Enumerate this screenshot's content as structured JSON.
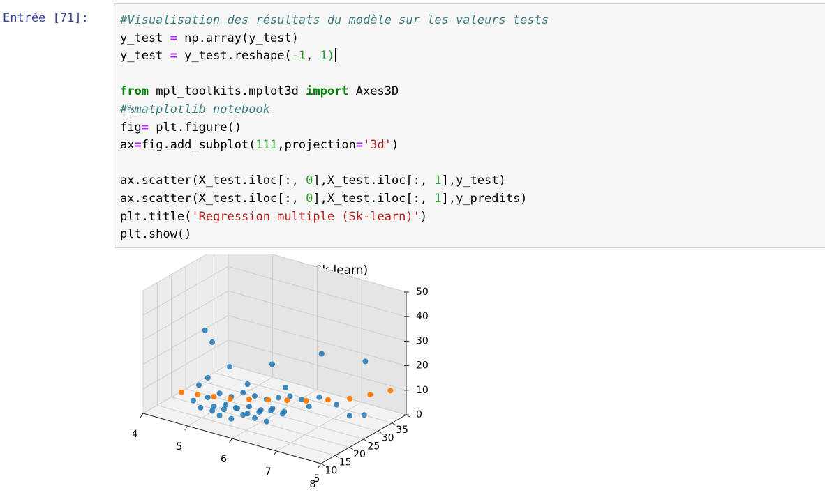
{
  "prompt": {
    "label": "Entrée [71]:"
  },
  "code": {
    "line1": "#Visualisation des résultats du modèle sur les valeurs tests",
    "line2": {
      "a": "y_test ",
      "op": "=",
      "b": " np.array(y_test)"
    },
    "line3": {
      "a": "y_test ",
      "op": "=",
      "b": " y_test.reshape(",
      "n1": "-1",
      "c": ", ",
      "n2": "1",
      "d": ")"
    },
    "line5": {
      "kw1": "from",
      "a": " mpl_toolkits.mplot3d ",
      "kw2": "import",
      "b": " Axes3D"
    },
    "line6": "#%matplotlib notebook",
    "line7": {
      "a": "fig",
      "op": "=",
      "b": " plt.figure()"
    },
    "line8": {
      "a": "ax",
      "op": "=",
      "b": "fig.add_subplot(",
      "n": "111",
      "c": ",projection",
      "op2": "=",
      "s": "'3d'",
      "d": ")"
    },
    "line10": {
      "a": "ax.scatter(X_test.iloc[:, ",
      "n1": "0",
      "b": "],X_test.iloc[:, ",
      "n2": "1",
      "c": "],y_test)"
    },
    "line11": {
      "a": "ax.scatter(X_test.iloc[:, ",
      "n1": "0",
      "b": "],X_test.iloc[:, ",
      "n2": "1",
      "c": "],y_predits)"
    },
    "line12": {
      "a": "plt.title(",
      "s": "'Regression multiple (Sk-learn)'",
      "b": ")"
    },
    "line13": "plt.show()"
  },
  "chart_data": {
    "type": "scatter",
    "title": "Regression multiple (Sk-learn)",
    "xlabel": "",
    "ylabel": "",
    "zlabel": "",
    "x_ticks": [
      "4",
      "5",
      "6",
      "7",
      "8"
    ],
    "y_ticks": [
      "5",
      "10",
      "15",
      "20",
      "25",
      "30",
      "35"
    ],
    "z_ticks": [
      "0",
      "10",
      "20",
      "30",
      "40",
      "50"
    ],
    "xlim": [
      4,
      8
    ],
    "ylim": [
      5,
      35
    ],
    "zlim": [
      0,
      50
    ],
    "colors": {
      "series_1": "#1f77b4",
      "series_2": "#ff7f0e"
    },
    "series": [
      {
        "color": "#1f77b4",
        "points": [
          [
            5.2,
            8,
            38
          ],
          [
            5.3,
            9,
            33
          ],
          [
            5.5,
            12,
            22
          ],
          [
            6.2,
            16,
            24
          ],
          [
            6.8,
            24,
            26
          ],
          [
            7.4,
            30,
            22
          ],
          [
            5.0,
            9,
            14
          ],
          [
            5.2,
            9,
            10
          ],
          [
            5.4,
            10,
            12
          ],
          [
            5.6,
            11,
            11
          ],
          [
            5.8,
            12,
            13
          ],
          [
            6.0,
            13,
            12
          ],
          [
            6.2,
            14,
            11
          ],
          [
            6.4,
            15,
            12
          ],
          [
            6.6,
            16,
            13
          ],
          [
            6.8,
            17,
            12
          ],
          [
            5.1,
            8,
            6
          ],
          [
            5.3,
            9,
            5
          ],
          [
            5.5,
            10,
            6
          ],
          [
            5.7,
            11,
            7
          ],
          [
            5.9,
            12,
            5
          ],
          [
            6.1,
            13,
            6
          ],
          [
            6.3,
            14,
            7
          ],
          [
            6.5,
            15,
            6
          ],
          [
            5.4,
            10,
            3
          ],
          [
            5.6,
            11,
            2
          ],
          [
            5.8,
            12,
            4
          ],
          [
            6.0,
            13,
            3
          ],
          [
            6.2,
            14,
            2
          ],
          [
            5.2,
            9,
            18
          ],
          [
            5.9,
            12,
            17
          ],
          [
            6.5,
            16,
            16
          ],
          [
            7.0,
            20,
            12
          ],
          [
            7.2,
            23,
            8
          ],
          [
            7.3,
            26,
            2
          ],
          [
            7.5,
            28,
            2
          ],
          [
            5.6,
            9,
            9
          ],
          [
            6.0,
            11,
            9
          ],
          [
            6.4,
            13,
            9
          ],
          [
            6.9,
            18,
            9
          ],
          [
            5.0,
            7,
            9
          ],
          [
            5.4,
            8,
            8
          ],
          [
            5.8,
            10,
            8
          ],
          [
            6.2,
            12,
            8
          ],
          [
            6.6,
            14,
            8
          ]
        ]
      },
      {
        "color": "#ff7f0e",
        "points": [
          [
            4.8,
            6,
            12
          ],
          [
            5.1,
            7,
            12
          ],
          [
            5.4,
            8,
            12
          ],
          [
            5.7,
            9,
            12
          ],
          [
            6.0,
            11,
            12
          ],
          [
            6.3,
            13,
            12
          ],
          [
            6.6,
            15,
            12
          ],
          [
            6.9,
            17,
            12
          ],
          [
            7.2,
            20,
            12
          ],
          [
            7.5,
            23,
            12
          ],
          [
            7.7,
            27,
            12
          ],
          [
            7.9,
            31,
            12
          ]
        ]
      }
    ]
  }
}
